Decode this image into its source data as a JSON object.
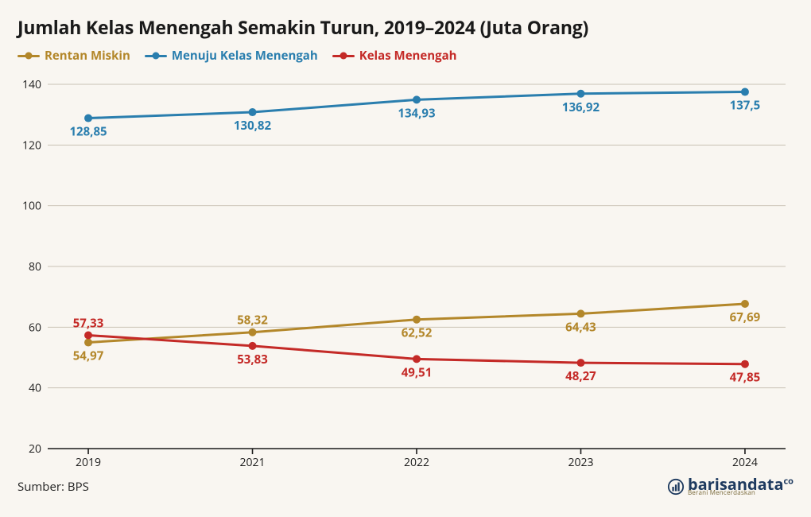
{
  "title": "Jumlah Kelas Menengah Semakin Turun, 2019–2024 (Juta Orang)",
  "source_label": "Sumber: BPS",
  "brand_name": "barisandata",
  "brand_suffix": "co",
  "brand_tagline": "Berani Mencerdaskan",
  "chart": {
    "type": "line",
    "background_color": "#f9f6f1",
    "grid_color": "#c9c2b5",
    "axis_color": "#1a1a1a",
    "title_fontsize": 23,
    "label_fontsize": 15,
    "axis_fontsize": 14,
    "marker_radius": 5,
    "line_width": 3,
    "x_categories": [
      "2019",
      "2021",
      "2022",
      "2023",
      "2024"
    ],
    "ylim": [
      20,
      140
    ],
    "ytick_step": 20,
    "yticks": [
      20,
      40,
      60,
      80,
      100,
      120,
      140
    ],
    "series": [
      {
        "name": "Rentan Miskin",
        "color": "#b3872a",
        "values": [
          54.97,
          58.32,
          62.52,
          64.43,
          67.69
        ],
        "label_color": "#b3872a",
        "label_pos": [
          "below",
          "above",
          "below",
          "below",
          "below"
        ]
      },
      {
        "name": "Menuju Kelas Menengah",
        "color": "#2a7eae",
        "values": [
          128.85,
          130.82,
          134.93,
          136.92,
          137.5
        ],
        "label_color": "#2a7eae",
        "label_pos": [
          "below",
          "below",
          "below",
          "below",
          "below"
        ]
      },
      {
        "name": "Kelas Menengah",
        "color": "#c42a27",
        "values": [
          57.33,
          53.83,
          49.51,
          48.27,
          47.85
        ],
        "label_color": "#c42a27",
        "label_pos": [
          "above",
          "below",
          "below",
          "below",
          "below"
        ]
      }
    ]
  }
}
